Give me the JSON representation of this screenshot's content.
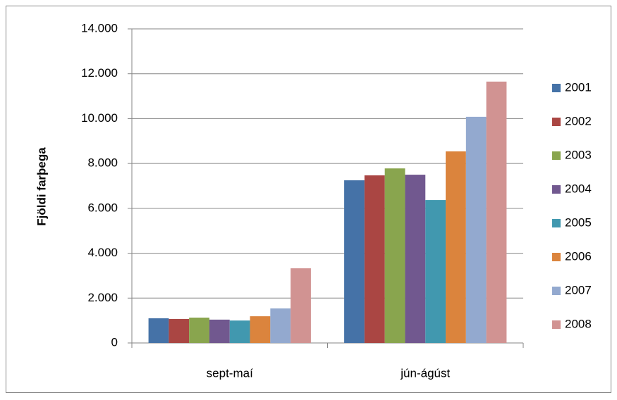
{
  "chart_data": {
    "type": "bar",
    "y_label": "Fjöldi farþega",
    "categories": [
      "sept-maí",
      "jún-ágúst"
    ],
    "series": [
      {
        "name": "2001",
        "color": "#4572a7",
        "values": [
          1100,
          7250
        ]
      },
      {
        "name": "2002",
        "color": "#aa4643",
        "values": [
          1070,
          7470
        ]
      },
      {
        "name": "2003",
        "color": "#89a54e",
        "values": [
          1130,
          7780
        ]
      },
      {
        "name": "2004",
        "color": "#71588f",
        "values": [
          1040,
          7500
        ]
      },
      {
        "name": "2005",
        "color": "#4198af",
        "values": [
          1000,
          6370
        ]
      },
      {
        "name": "2006",
        "color": "#db843d",
        "values": [
          1190,
          8540
        ]
      },
      {
        "name": "2007",
        "color": "#93a9cf",
        "values": [
          1540,
          10080
        ]
      },
      {
        "name": "2008",
        "color": "#d19392",
        "values": [
          3330,
          11650
        ]
      }
    ],
    "ylim": [
      0,
      14000
    ],
    "yticks": [
      0,
      {
        "value": 2000,
        "label": "2.000"
      },
      {
        "value": 4000,
        "label": "4.000"
      },
      {
        "value": 6000,
        "label": "6.000"
      },
      {
        "value": 8000,
        "label": "8.000"
      },
      {
        "value": 10000,
        "label": "10.000"
      },
      {
        "value": 12000,
        "label": "12.000"
      },
      {
        "value": 14000,
        "label": "14.000"
      }
    ],
    "grid": true,
    "legend": "right"
  }
}
